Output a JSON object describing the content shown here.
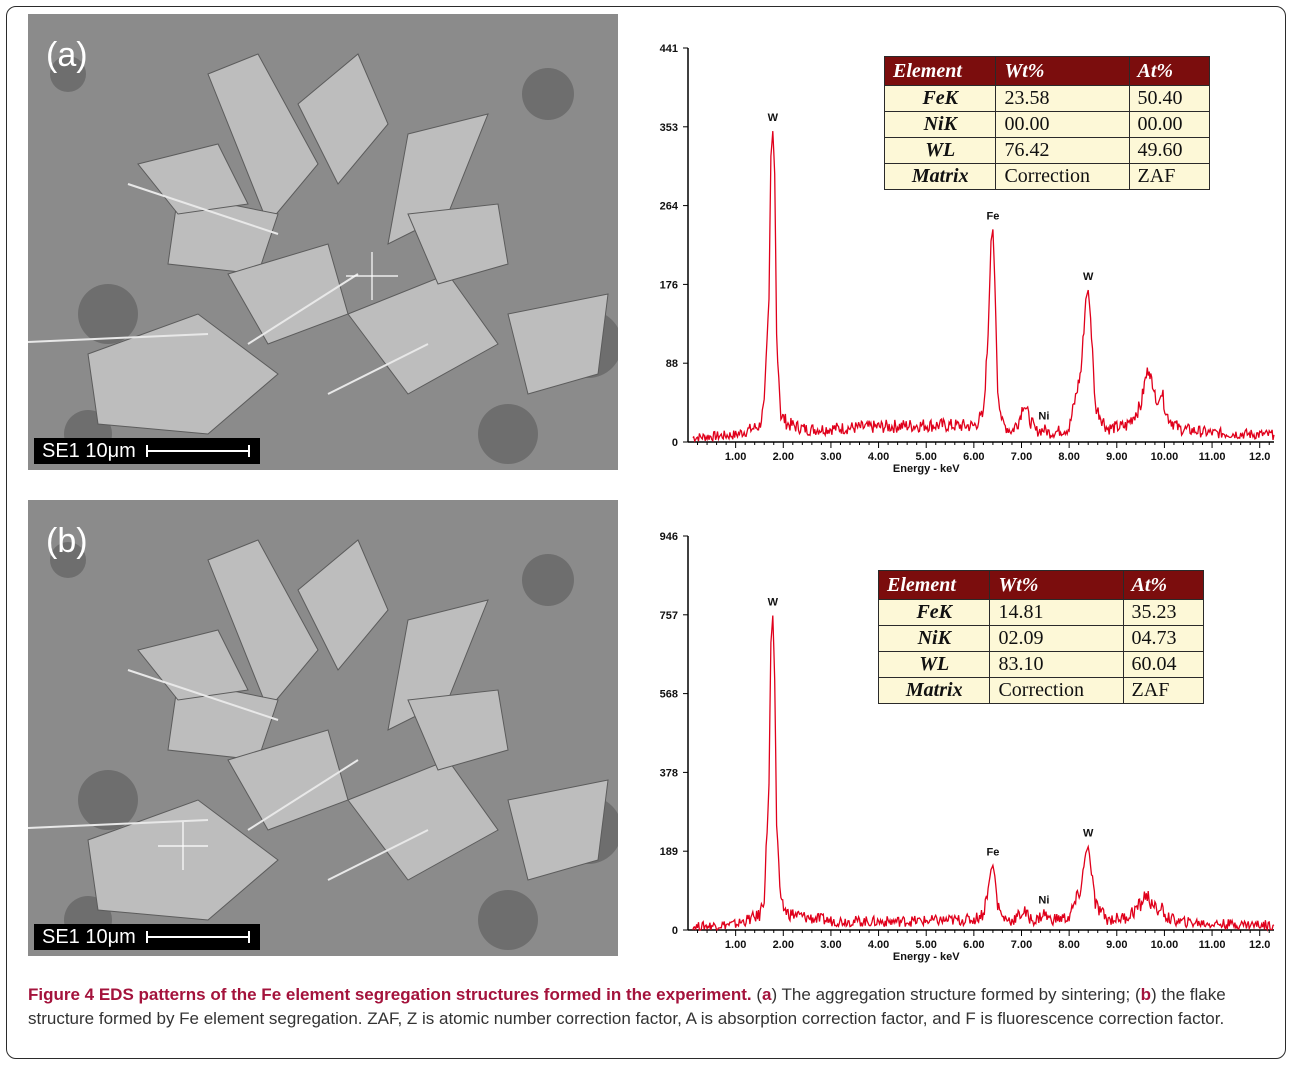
{
  "panels": [
    {
      "label": "(a)",
      "scale_text": "SE1  10μm",
      "table": {
        "headers": [
          "Element",
          "Wt%",
          "At%"
        ],
        "rows": [
          [
            "FeK",
            "23.58",
            "50.40"
          ],
          [
            "NiK",
            "00.00",
            "00.00"
          ],
          [
            "WL",
            "76.42",
            "49.60"
          ],
          [
            "Matrix",
            "Correction",
            "ZAF"
          ]
        ]
      }
    },
    {
      "label": "(b)",
      "scale_text": "SE1  10μm",
      "table": {
        "headers": [
          "Element",
          "Wt%",
          "At%"
        ],
        "rows": [
          [
            "FeK",
            "14.81",
            "35.23"
          ],
          [
            "NiK",
            "02.09",
            "04.73"
          ],
          [
            "WL",
            "83.10",
            "60.04"
          ],
          [
            "Matrix",
            "Correction",
            "ZAF"
          ]
        ]
      }
    }
  ],
  "colors": {
    "spectrum": "#e0001b",
    "table_header": "#7b0d0d",
    "table_body": "#fdf8d7",
    "caption_title": "#a4133c"
  },
  "caption": {
    "title": "Figure 4 EDS patterns of the Fe element segregation structures formed in the experiment.",
    "p1": " (",
    "a": "a",
    "p2": ") The aggregation structure formed by sintering; (",
    "b": "b",
    "p3": ") the flake structure formed by Fe element segregation. ZAF, Z is atomic number correction factor, A is absorption correction factor, and F is fluorescence correction factor."
  },
  "chart_data": [
    {
      "type": "line",
      "xlabel": "Energy - keV",
      "ylabel": "",
      "xlim": [
        0,
        12.3
      ],
      "ylim": [
        0,
        441
      ],
      "yticks": [
        "0",
        "88",
        "176",
        "264",
        "353",
        "441"
      ],
      "xticks": [
        "1.00",
        "2.00",
        "3.00",
        "4.00",
        "5.00",
        "6.00",
        "7.00",
        "8.00",
        "9.00",
        "10.00",
        "11.00",
        "12.0"
      ],
      "peaks": [
        {
          "label": "W",
          "x": 1.78,
          "y": 348
        },
        {
          "label": "Fe",
          "x": 6.4,
          "y": 238
        },
        {
          "label": "Ni",
          "x": 7.47,
          "y": 14
        },
        {
          "label": "W",
          "x": 8.4,
          "y": 170
        }
      ],
      "series": [
        {
          "x": [
            0.1,
            1.0,
            1.5,
            1.6,
            1.7,
            1.74,
            1.78,
            1.82,
            1.86,
            1.95,
            2.1,
            2.5,
            3.0,
            4.0,
            5.0,
            6.0,
            6.2,
            6.3,
            6.36,
            6.4,
            6.44,
            6.5,
            6.6,
            6.8,
            6.95,
            7.05,
            7.15,
            7.3,
            7.47,
            7.6,
            8.0,
            8.25,
            8.35,
            8.4,
            8.45,
            8.55,
            8.8,
            9.2,
            9.5,
            9.6,
            9.68,
            9.75,
            9.8,
            9.88,
            9.95,
            10.05,
            10.3,
            11.0,
            12.3
          ],
          "y": [
            5,
            8,
            18,
            40,
            160,
            320,
            348,
            300,
            120,
            30,
            20,
            14,
            15,
            17,
            19,
            18,
            30,
            120,
            225,
            238,
            180,
            60,
            20,
            12,
            25,
            45,
            28,
            12,
            14,
            10,
            15,
            80,
            160,
            170,
            140,
            40,
            15,
            18,
            40,
            70,
            85,
            60,
            55,
            45,
            55,
            30,
            15,
            10,
            8
          ]
        }
      ]
    },
    {
      "type": "line",
      "xlabel": "Energy - keV",
      "ylabel": "",
      "xlim": [
        0,
        12.3
      ],
      "ylim": [
        0,
        946
      ],
      "yticks": [
        "0",
        "189",
        "378",
        "568",
        "757",
        "946"
      ],
      "xticks": [
        "1.00",
        "2.00",
        "3.00",
        "4.00",
        "5.00",
        "6.00",
        "7.00",
        "8.00",
        "9.00",
        "10.00",
        "11.00",
        "12.0"
      ],
      "peaks": [
        {
          "label": "W",
          "x": 1.78,
          "y": 755
        },
        {
          "label": "Fe",
          "x": 6.4,
          "y": 155
        },
        {
          "label": "Ni",
          "x": 7.47,
          "y": 40
        },
        {
          "label": "W",
          "x": 8.4,
          "y": 200
        }
      ],
      "series": [
        {
          "x": [
            0.1,
            1.0,
            1.5,
            1.6,
            1.7,
            1.74,
            1.78,
            1.82,
            1.86,
            1.95,
            2.1,
            2.5,
            3.0,
            4.0,
            5.0,
            6.0,
            6.2,
            6.3,
            6.36,
            6.4,
            6.44,
            6.5,
            6.6,
            6.8,
            6.95,
            7.05,
            7.15,
            7.3,
            7.47,
            7.6,
            8.0,
            8.25,
            8.35,
            8.4,
            8.45,
            8.55,
            8.8,
            9.2,
            9.5,
            9.6,
            9.68,
            9.75,
            9.8,
            9.88,
            9.95,
            10.05,
            10.3,
            11.0,
            12.3
          ],
          "y": [
            8,
            14,
            35,
            80,
            350,
            690,
            755,
            600,
            250,
            60,
            40,
            30,
            22,
            20,
            22,
            25,
            40,
            100,
            145,
            155,
            130,
            60,
            30,
            22,
            35,
            45,
            30,
            22,
            40,
            25,
            30,
            100,
            185,
            200,
            165,
            60,
            25,
            30,
            60,
            85,
            75,
            60,
            50,
            45,
            50,
            30,
            20,
            15,
            12
          ]
        }
      ]
    }
  ]
}
